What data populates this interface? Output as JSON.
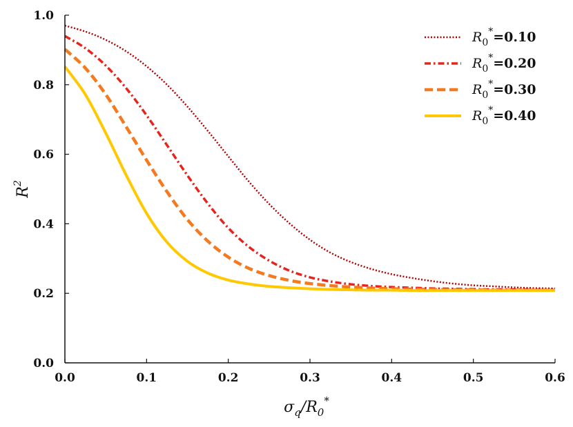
{
  "chart_data": {
    "type": "line",
    "title": "",
    "xlabel": "σq/R0*",
    "ylabel": "R2",
    "xlim": [
      0,
      0.6
    ],
    "ylim": [
      0,
      1.0
    ],
    "xticks": [
      0.0,
      0.1,
      0.2,
      0.3,
      0.4,
      0.5,
      0.6
    ],
    "yticks": [
      0.0,
      0.2,
      0.4,
      0.6,
      0.8,
      1.0
    ],
    "xtick_labels": [
      "0.0",
      "0.1",
      "0.2",
      "0.3",
      "0.4",
      "0.5",
      "0.6"
    ],
    "ytick_labels": [
      "0.0",
      "0.2",
      "0.4",
      "0.6",
      "0.8",
      "1.0"
    ],
    "grid": false,
    "legend_position": "top-right",
    "x": [
      0.0,
      0.025,
      0.05,
      0.075,
      0.1,
      0.125,
      0.15,
      0.175,
      0.2,
      0.225,
      0.25,
      0.275,
      0.3,
      0.325,
      0.35,
      0.375,
      0.4,
      0.425,
      0.45,
      0.475,
      0.5,
      0.525,
      0.55,
      0.575,
      0.6
    ],
    "series": [
      {
        "name": "R0*=0.10",
        "label_prefix": "R",
        "label_sub": "0",
        "label_sup": "*",
        "label_value": "=0.10",
        "color": "#b30000",
        "dash": "2,2.5",
        "width": 2.5,
        "values": [
          0.97,
          0.953,
          0.929,
          0.896,
          0.853,
          0.8,
          0.737,
          0.667,
          0.594,
          0.522,
          0.457,
          0.401,
          0.354,
          0.317,
          0.29,
          0.27,
          0.255,
          0.244,
          0.235,
          0.228,
          0.223,
          0.22,
          0.217,
          0.215,
          0.214
        ]
      },
      {
        "name": "R0*=0.20",
        "label_prefix": "R",
        "label_sub": "0",
        "label_sup": "*",
        "label_value": "=0.20",
        "color": "#e8231c",
        "dash": "9,4,2.5,4",
        "width": 3.5,
        "values": [
          0.94,
          0.905,
          0.855,
          0.79,
          0.712,
          0.626,
          0.539,
          0.458,
          0.388,
          0.334,
          0.294,
          0.265,
          0.246,
          0.234,
          0.226,
          0.221,
          0.218,
          0.216,
          0.214,
          0.213,
          0.212,
          0.211,
          0.211,
          0.21,
          0.21
        ]
      },
      {
        "name": "R0*=0.30",
        "label_prefix": "R",
        "label_sub": "0",
        "label_sup": "*",
        "label_value": "=0.30",
        "color": "#f57a1f",
        "dash": "12,6",
        "width": 4.5,
        "values": [
          0.902,
          0.848,
          0.772,
          0.679,
          0.583,
          0.492,
          0.412,
          0.35,
          0.304,
          0.272,
          0.251,
          0.237,
          0.228,
          0.222,
          0.218,
          0.215,
          0.213,
          0.212,
          0.211,
          0.21,
          0.21,
          0.209,
          0.209,
          0.209,
          0.209
        ]
      },
      {
        "name": "R0*=0.40",
        "label_prefix": "R",
        "label_sub": "0",
        "label_sup": "*",
        "label_value": "=0.40",
        "color": "#ffc800",
        "dash": "",
        "width": 4,
        "values": [
          0.852,
          0.772,
          0.661,
          0.54,
          0.43,
          0.347,
          0.292,
          0.258,
          0.238,
          0.227,
          0.22,
          0.216,
          0.213,
          0.211,
          0.21,
          0.209,
          0.209,
          0.208,
          0.208,
          0.208,
          0.208,
          0.208,
          0.208,
          0.208,
          0.208
        ]
      }
    ]
  },
  "axis_labels": {
    "x_main": "σ",
    "x_sub": "q",
    "x_slash": "/R",
    "x_sub2": "0",
    "x_sup": "*",
    "y_main": "R",
    "y_sup": "2"
  }
}
